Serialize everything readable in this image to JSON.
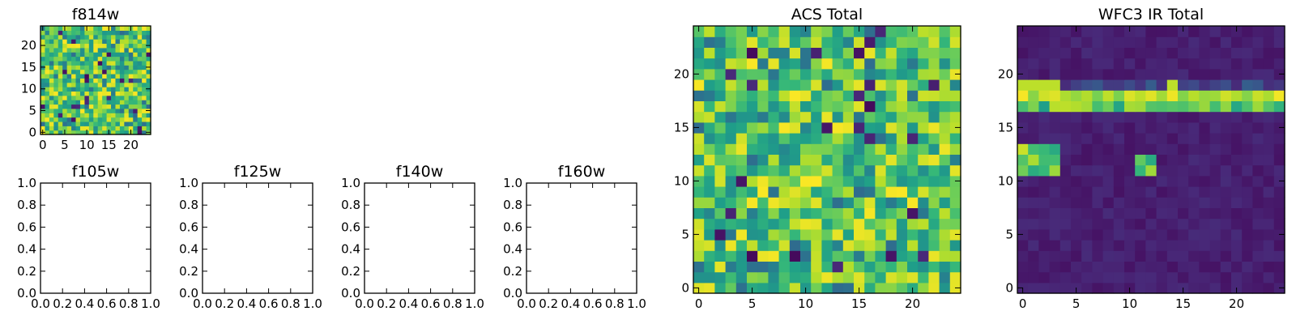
{
  "chart_data": [
    {
      "type": "heatmap",
      "title": "f814w",
      "grid_size": 25,
      "colormap": "viridis",
      "xlim": [
        -0.5,
        24.5
      ],
      "ylim": [
        -0.5,
        24.5
      ],
      "xticks": [
        0,
        5,
        10,
        15,
        20
      ],
      "yticks": [
        0,
        5,
        10,
        15,
        20
      ],
      "description": "noise-like field, mostly green/yellow",
      "sample_levels": [
        0.72,
        0.55,
        0.85,
        0.4,
        0.95,
        0.6,
        0.3,
        0.05
      ]
    },
    {
      "type": "empty",
      "title": "f105w",
      "xlim": [
        0,
        1
      ],
      "ylim": [
        0,
        1
      ],
      "xticks": [
        "0.0",
        "0.2",
        "0.4",
        "0.6",
        "0.8",
        "1.0"
      ],
      "yticks": [
        "0.0",
        "0.2",
        "0.4",
        "0.6",
        "0.8",
        "1.0"
      ]
    },
    {
      "type": "empty",
      "title": "f125w",
      "xlim": [
        0,
        1
      ],
      "ylim": [
        0,
        1
      ],
      "xticks": [
        "0.0",
        "0.2",
        "0.4",
        "0.6",
        "0.8",
        "1.0"
      ],
      "yticks": [
        "0.0",
        "0.2",
        "0.4",
        "0.6",
        "0.8",
        "1.0"
      ]
    },
    {
      "type": "empty",
      "title": "f140w",
      "xlim": [
        0,
        1
      ],
      "ylim": [
        0,
        1
      ],
      "xticks": [
        "0.0",
        "0.2",
        "0.4",
        "0.6",
        "0.8",
        "1.0"
      ],
      "yticks": [
        "0.0",
        "0.2",
        "0.4",
        "0.6",
        "0.8",
        "1.0"
      ]
    },
    {
      "type": "empty",
      "title": "f160w",
      "xlim": [
        0,
        1
      ],
      "ylim": [
        0,
        1
      ],
      "xticks": [
        "0.0",
        "0.2",
        "0.4",
        "0.6",
        "0.8",
        "1.0"
      ],
      "yticks": [
        "0.0",
        "0.2",
        "0.4",
        "0.6",
        "0.8",
        "1.0"
      ]
    },
    {
      "type": "heatmap",
      "title": "ACS Total",
      "grid_size": 25,
      "colormap": "viridis",
      "xlim": [
        -0.5,
        24.5
      ],
      "ylim": [
        -0.5,
        24.5
      ],
      "xticks": [
        0,
        5,
        10,
        15,
        20
      ],
      "yticks": [
        0,
        5,
        10,
        15,
        20
      ],
      "description": "noise-like field, mostly green/yellow",
      "sample_levels": [
        0.72,
        0.55,
        0.85,
        0.4,
        0.95,
        0.6,
        0.3,
        0.05
      ]
    },
    {
      "type": "heatmap",
      "title": "WFC3 IR Total",
      "grid_size": 25,
      "colormap": "viridis",
      "xlim": [
        -0.5,
        24.5
      ],
      "ylim": [
        -0.5,
        24.5
      ],
      "xticks": [
        0,
        5,
        10,
        15,
        20
      ],
      "yticks": [
        0,
        5,
        10,
        15,
        20
      ],
      "description": "dark purple background with a bright horizontal band across rows 17-19 and two small bright blobs near row 11-13",
      "background_level": 0.05,
      "bright_rows": [
        17,
        18,
        19
      ],
      "blob_regions": [
        {
          "cols": [
            0,
            3
          ],
          "rows": [
            11,
            13
          ]
        },
        {
          "cols": [
            11,
            12
          ],
          "rows": [
            11,
            12
          ]
        }
      ]
    }
  ]
}
